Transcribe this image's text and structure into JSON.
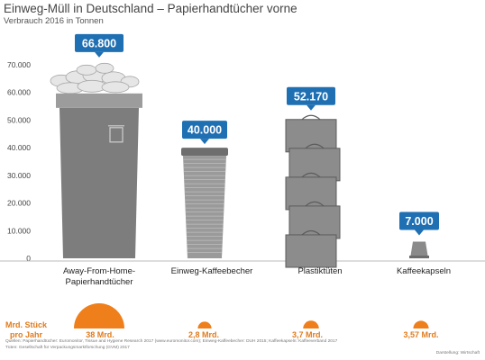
{
  "title": "Einweg-Müll in Deutschland – Papierhandtücher vorne",
  "subtitle": "Verbrauch 2016 in Tonnen",
  "frequency_label_line1": "Mrd. Stück",
  "frequency_label_line2": "pro Jahr",
  "source_line1": "Quellen: Papierhandtücher: Euromonitor, Tissue and Hygiene Research 2017 (www.euromonitor.com); Einweg-Kaffeebecher: DUH 2015; Kaffeekapseln: Kaffeeverband 2017",
  "source_line2": "Tüten: Gesellschaft für Verpackungsmarktforschung (GVM) 2017",
  "credit": "Darstellung: Wirtschaft",
  "colors": {
    "badge": "#1f6fb3",
    "orange": "#ef7f1a",
    "axis": "#bbbbbb",
    "object": "#8a8a8a"
  },
  "chart_data": {
    "type": "bar",
    "title": "Einweg-Müll in Deutschland – Papierhandtücher vorne",
    "subtitle": "Verbrauch 2016 in Tonnen",
    "ylim": [
      0,
      70000
    ],
    "yticks": [
      "0",
      "10.000",
      "20.000",
      "30.000",
      "40.000",
      "50.000",
      "60.000",
      "70.000"
    ],
    "categories": [
      "Away-From-Home-Papierhandtücher",
      "Einweg-Kaffeebecher",
      "Plastiktüten",
      "Kaffeekapseln"
    ],
    "values": [
      66800,
      40000,
      52170,
      7000
    ],
    "value_labels": [
      "66.800",
      "40.000",
      "52.170",
      "7.000"
    ],
    "pieces_per_year_bn": [
      38,
      2.8,
      3.7,
      3.57
    ],
    "pieces_labels": [
      "38 Mrd.",
      "2,8 Mrd.",
      "3,7 Mrd.",
      "3,57 Mrd."
    ],
    "grid": false
  }
}
